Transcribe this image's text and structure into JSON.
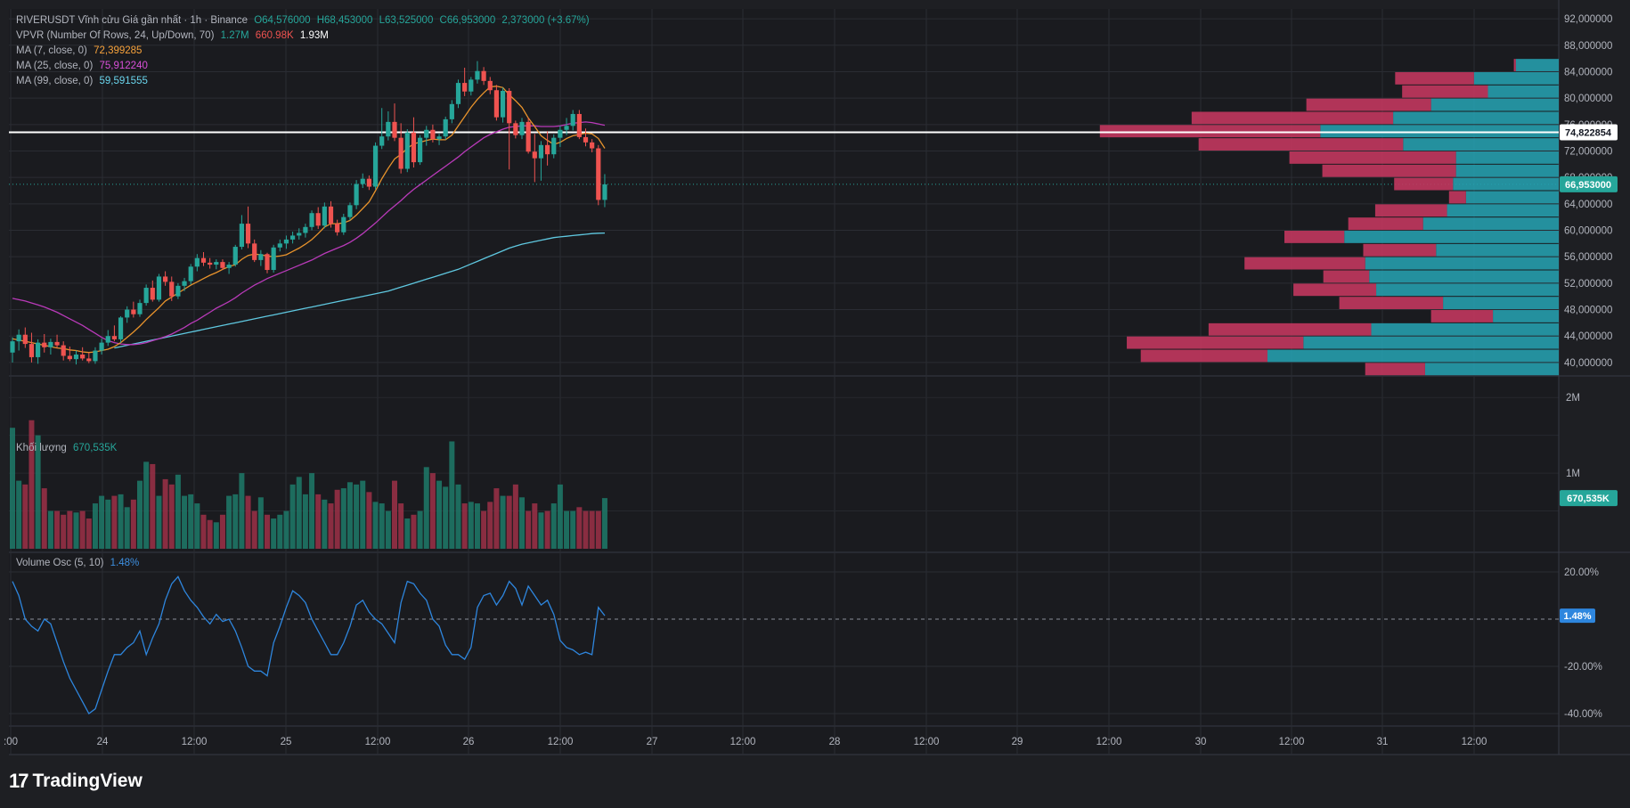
{
  "header": {
    "symbol": "RIVERUSDT Vĩnh cửu Giá gần nhất · 1h · Binance",
    "open": "O64,576000",
    "high": "H68,453000",
    "low": "L63,525000",
    "close": "C66,953000",
    "change": "2,373000 (+3.67%)"
  },
  "indicators": {
    "vpvr": {
      "label": "VPVR (Number Of Rows, 24, Up/Down, 70)",
      "up": "1.27M",
      "down": "660.98K",
      "total": "1.93M"
    },
    "ma7": {
      "label": "MA (7, close, 0)",
      "value": "72,399285",
      "color": "#f7a23b"
    },
    "ma25": {
      "label": "MA (25, close, 0)",
      "value": "75,912240",
      "color": "#c23bc2"
    },
    "ma99": {
      "label": "MA (99, close, 0)",
      "value": "59,591555",
      "color": "#5fc8e0"
    }
  },
  "volume_pane": {
    "label": "Khối lượng",
    "value": "670,535K",
    "axis_ticks": [
      "2M",
      "1M"
    ]
  },
  "osc_pane": {
    "label": "Volume Osc (5, 10)",
    "value": "1.48%",
    "axis_ticks": [
      "20.00%",
      "-20.00%",
      "-40.00%"
    ]
  },
  "price_axis": {
    "ticks": [
      "92,000000",
      "88,000000",
      "84,000000",
      "80,000000",
      "76,000000",
      "72,000000",
      "68,000000",
      "64,000000",
      "60,000000",
      "56,000000",
      "52,000000",
      "48,000000",
      "44,000000",
      "40,000000"
    ],
    "line_label": "74,822854",
    "last_label": "66,953000"
  },
  "time_axis": {
    "ticks": [
      ":00",
      "24",
      "12:00",
      "25",
      "12:00",
      "26",
      "12:00",
      "27",
      "12:00",
      "28",
      "12:00",
      "29",
      "12:00",
      "30",
      "12:00",
      "31",
      "12:00"
    ]
  },
  "brand": {
    "name": "TradingView",
    "logo": "17"
  },
  "colors": {
    "up": "#26a69a",
    "down": "#ef5350",
    "vp_up": "#26a0b0",
    "vp_down": "#c2375e",
    "background": "#1e1f23",
    "osc_line": "#2e86de"
  },
  "chart_data": {
    "type": "candlestick",
    "title": "RIVERUSDT Vĩnh cửu Giá gần nhất · 1h · Binance",
    "y_range": [
      38.5,
      93.5
    ],
    "horizontal_line": 74.822854,
    "last_price": 66.953,
    "candles": [
      [
        41.5,
        43.8,
        40.0,
        43.2
      ],
      [
        43.2,
        45.0,
        41.8,
        44.2
      ],
      [
        44.2,
        45.3,
        42.2,
        42.8
      ],
      [
        42.8,
        44.5,
        40.0,
        40.8
      ],
      [
        40.8,
        43.5,
        39.8,
        43.0
      ],
      [
        43.0,
        44.3,
        41.5,
        42.3
      ],
      [
        42.3,
        43.6,
        41.2,
        43.1
      ],
      [
        43.1,
        44.2,
        42.2,
        42.6
      ],
      [
        42.6,
        43.2,
        40.3,
        41.0
      ],
      [
        41.0,
        42.4,
        40.2,
        40.5
      ],
      [
        40.5,
        41.8,
        39.7,
        41.2
      ],
      [
        41.2,
        42.3,
        40.3,
        40.6
      ],
      [
        40.6,
        41.5,
        39.9,
        40.2
      ],
      [
        40.2,
        42.3,
        39.8,
        41.8
      ],
      [
        41.8,
        43.6,
        41.2,
        43.0
      ],
      [
        43.0,
        44.9,
        42.5,
        44.0
      ],
      [
        44.0,
        45.6,
        43.2,
        43.5
      ],
      [
        43.5,
        47.0,
        43.0,
        46.8
      ],
      [
        46.8,
        48.5,
        46.0,
        48.0
      ],
      [
        48.0,
        49.2,
        46.8,
        47.3
      ],
      [
        47.3,
        49.5,
        46.9,
        49.0
      ],
      [
        49.0,
        51.8,
        48.6,
        51.3
      ],
      [
        51.3,
        52.4,
        49.2,
        49.5
      ],
      [
        49.5,
        53.4,
        49.2,
        53.0
      ],
      [
        53.0,
        53.8,
        51.6,
        52.2
      ],
      [
        52.2,
        53.0,
        49.3,
        50.0
      ],
      [
        50.0,
        52.0,
        49.6,
        51.6
      ],
      [
        51.6,
        52.8,
        50.8,
        52.3
      ],
      [
        52.3,
        54.9,
        51.8,
        54.5
      ],
      [
        54.5,
        56.4,
        53.8,
        55.8
      ],
      [
        55.8,
        56.7,
        54.6,
        55.1
      ],
      [
        55.1,
        55.8,
        54.2,
        54.8
      ],
      [
        54.8,
        55.6,
        54.1,
        55.2
      ],
      [
        55.2,
        55.6,
        54.0,
        54.3
      ],
      [
        54.3,
        55.2,
        53.4,
        54.8
      ],
      [
        54.8,
        57.8,
        54.5,
        57.5
      ],
      [
        57.5,
        62.3,
        57.1,
        61.0
      ],
      [
        61.0,
        63.6,
        57.3,
        58.0
      ],
      [
        58.0,
        58.6,
        55.2,
        55.5
      ],
      [
        55.5,
        57.0,
        54.6,
        56.4
      ],
      [
        56.4,
        56.6,
        53.5,
        54.0
      ],
      [
        54.0,
        57.8,
        53.6,
        57.4
      ],
      [
        57.4,
        58.6,
        56.8,
        58.0
      ],
      [
        58.0,
        59.2,
        57.2,
        58.6
      ],
      [
        58.6,
        59.8,
        58.0,
        59.2
      ],
      [
        59.2,
        60.3,
        58.6,
        59.6
      ],
      [
        59.6,
        61.0,
        58.9,
        60.5
      ],
      [
        60.5,
        63.0,
        60.0,
        62.6
      ],
      [
        62.6,
        63.5,
        60.2,
        60.7
      ],
      [
        60.7,
        64.2,
        60.3,
        63.6
      ],
      [
        63.6,
        64.4,
        60.4,
        61.0
      ],
      [
        61.0,
        61.6,
        59.2,
        59.7
      ],
      [
        59.7,
        62.5,
        59.3,
        62.0
      ],
      [
        62.0,
        64.2,
        61.5,
        63.8
      ],
      [
        63.8,
        67.6,
        63.2,
        67.0
      ],
      [
        67.0,
        68.6,
        66.4,
        67.8
      ],
      [
        67.8,
        68.3,
        66.1,
        66.6
      ],
      [
        66.6,
        73.3,
        66.2,
        72.8
      ],
      [
        72.8,
        78.5,
        72.3,
        74.2
      ],
      [
        74.2,
        78.0,
        73.6,
        76.4
      ],
      [
        76.4,
        79.2,
        73.5,
        74.0
      ],
      [
        74.0,
        76.2,
        68.6,
        69.3
      ],
      [
        69.3,
        75.3,
        68.8,
        74.8
      ],
      [
        74.8,
        77.1,
        69.5,
        70.3
      ],
      [
        70.3,
        74.4,
        69.9,
        74.0
      ],
      [
        74.0,
        75.8,
        72.8,
        75.2
      ],
      [
        75.2,
        76.0,
        73.3,
        73.8
      ],
      [
        73.8,
        74.6,
        72.9,
        74.2
      ],
      [
        74.2,
        77.2,
        73.7,
        76.8
      ],
      [
        76.8,
        79.7,
        76.2,
        79.1
      ],
      [
        79.1,
        82.8,
        78.5,
        82.3
      ],
      [
        82.3,
        84.6,
        80.3,
        81.0
      ],
      [
        81.0,
        83.2,
        80.4,
        82.8
      ],
      [
        82.8,
        85.6,
        82.2,
        84.1
      ],
      [
        84.1,
        84.7,
        82.0,
        82.6
      ],
      [
        82.6,
        83.2,
        80.6,
        81.2
      ],
      [
        81.2,
        82.0,
        76.6,
        77.1
      ],
      [
        77.1,
        81.6,
        76.3,
        81.1
      ],
      [
        81.1,
        81.5,
        69.2,
        76.2
      ],
      [
        76.2,
        76.6,
        73.9,
        74.4
      ],
      [
        74.4,
        77.0,
        73.8,
        76.4
      ],
      [
        76.4,
        77.0,
        71.6,
        71.9
      ],
      [
        71.9,
        74.6,
        67.3,
        70.9
      ],
      [
        70.9,
        73.5,
        67.5,
        72.9
      ],
      [
        72.9,
        75.0,
        69.8,
        71.5
      ],
      [
        71.5,
        74.5,
        70.9,
        74.0
      ],
      [
        74.0,
        75.8,
        72.6,
        75.2
      ],
      [
        75.2,
        77.0,
        74.4,
        75.8
      ],
      [
        75.8,
        78.2,
        75.1,
        77.6
      ],
      [
        77.6,
        78.2,
        73.8,
        74.1
      ],
      [
        74.1,
        75.4,
        72.7,
        73.3
      ],
      [
        73.3,
        73.8,
        71.8,
        72.4
      ],
      [
        72.4,
        72.9,
        63.8,
        64.6
      ],
      [
        64.6,
        68.5,
        63.5,
        66.95
      ]
    ],
    "ma7": [
      43.6,
      43.4,
      43.2,
      43.0,
      42.8,
      42.6,
      42.4,
      42.2,
      42.1,
      41.9,
      41.8,
      41.6,
      41.5,
      41.6,
      41.8,
      42.0,
      42.4,
      43.0,
      43.8,
      44.6,
      45.5,
      46.5,
      47.4,
      48.3,
      49.3,
      49.9,
      50.5,
      51.1,
      51.7,
      52.2,
      52.7,
      53.2,
      53.6,
      54.1,
      54.5,
      54.8,
      55.6,
      56.2,
      56.4,
      56.3,
      56.1,
      56.0,
      56.1,
      56.3,
      56.8,
      57.3,
      57.9,
      58.6,
      59.5,
      60.5,
      61.0,
      61.0,
      61.1,
      61.5,
      62.3,
      63.3,
      64.3,
      66.0,
      67.8,
      69.4,
      70.8,
      71.5,
      72.4,
      73.1,
      73.3,
      73.6,
      73.8,
      73.7,
      73.7,
      74.4,
      75.8,
      77.2,
      78.6,
      79.8,
      80.8,
      81.7,
      81.8,
      81.6,
      80.5,
      79.6,
      78.6,
      77.0,
      75.7,
      74.3,
      73.6,
      73.0,
      73.3,
      73.9,
      74.3,
      74.5,
      74.7,
      74.6,
      73.9,
      72.4
    ],
    "ma25": [
      49.7,
      49.5,
      49.3,
      49.0,
      48.7,
      48.4,
      48.0,
      47.6,
      47.1,
      46.6,
      46.1,
      45.6,
      45.0,
      44.4,
      43.8,
      43.3,
      43.0,
      42.8,
      42.7,
      42.7,
      42.8,
      43.0,
      43.3,
      43.6,
      43.9,
      44.3,
      44.8,
      45.3,
      45.9,
      46.4,
      47.0,
      47.6,
      48.2,
      48.7,
      49.2,
      49.8,
      50.5,
      51.1,
      51.7,
      52.2,
      52.7,
      53.1,
      53.5,
      53.9,
      54.3,
      54.7,
      55.1,
      55.5,
      56.0,
      56.5,
      56.9,
      57.3,
      57.7,
      58.2,
      58.8,
      59.5,
      60.3,
      61.1,
      62.0,
      62.9,
      63.7,
      64.5,
      65.4,
      66.2,
      66.9,
      67.6,
      68.3,
      69.0,
      69.7,
      70.4,
      71.1,
      71.9,
      72.6,
      73.3,
      74.0,
      74.5,
      74.9,
      75.3,
      75.6,
      75.7,
      75.8,
      75.8,
      75.8,
      75.7,
      75.7,
      75.7,
      75.8,
      76.0,
      76.2,
      76.3,
      76.4,
      76.3,
      76.1,
      75.9
    ],
    "ma99": [
      null,
      null,
      null,
      null,
      null,
      null,
      null,
      null,
      null,
      null,
      null,
      null,
      null,
      null,
      null,
      null,
      42.2,
      42.4,
      42.6,
      42.8,
      43.0,
      43.2,
      43.4,
      43.6,
      43.8,
      44.0,
      44.2,
      44.4,
      44.6,
      44.8,
      45.0,
      45.2,
      45.4,
      45.6,
      45.8,
      46.0,
      46.2,
      46.4,
      46.6,
      46.8,
      47.0,
      47.2,
      47.4,
      47.6,
      47.8,
      48.0,
      48.2,
      48.4,
      48.6,
      48.8,
      49.0,
      49.2,
      49.4,
      49.6,
      49.8,
      50.0,
      50.2,
      50.4,
      50.6,
      50.8,
      51.1,
      51.4,
      51.7,
      52.0,
      52.3,
      52.6,
      52.9,
      53.2,
      53.5,
      53.8,
      54.1,
      54.5,
      54.9,
      55.3,
      55.7,
      56.1,
      56.5,
      56.9,
      57.3,
      57.6,
      57.9,
      58.1,
      58.3,
      58.5,
      58.7,
      58.9,
      59.0,
      59.1,
      59.2,
      59.3,
      59.4,
      59.5,
      59.55,
      59.59
    ],
    "volume": [
      1.6,
      0.9,
      0.85,
      1.7,
      1.5,
      0.8,
      0.5,
      0.5,
      0.45,
      0.5,
      0.48,
      0.5,
      0.4,
      0.6,
      0.7,
      0.65,
      0.7,
      0.72,
      0.55,
      0.65,
      0.9,
      1.15,
      1.12,
      0.7,
      0.92,
      0.85,
      0.98,
      0.7,
      0.72,
      0.6,
      0.45,
      0.38,
      0.35,
      0.45,
      0.7,
      0.72,
      1.0,
      0.7,
      0.5,
      0.68,
      0.45,
      0.4,
      0.45,
      0.5,
      0.85,
      0.95,
      0.72,
      1.0,
      0.72,
      0.65,
      0.6,
      0.78,
      0.8,
      0.88,
      0.85,
      0.9,
      0.75,
      0.62,
      0.6,
      0.5,
      0.9,
      0.6,
      0.4,
      0.45,
      0.5,
      1.08,
      1.0,
      0.9,
      0.82,
      1.42,
      0.85,
      0.6,
      0.62,
      0.6,
      0.5,
      0.62,
      0.8,
      0.7,
      0.7,
      0.85,
      0.68,
      0.5,
      0.6,
      0.48,
      0.5,
      0.6,
      0.85,
      0.5,
      0.5,
      0.55,
      0.5,
      0.5,
      0.5,
      0.67
    ],
    "osc": [
      16,
      10,
      0,
      -3,
      -5,
      0,
      -2,
      -10,
      -18,
      -25,
      -30,
      -35,
      -40,
      -38,
      -30,
      -22,
      -15,
      -15,
      -12,
      -10,
      -5,
      -15,
      -8,
      -2,
      8,
      15,
      18,
      12,
      8,
      5,
      1,
      -2,
      2,
      -1,
      0,
      -5,
      -12,
      -20,
      -22,
      -22,
      -24,
      -10,
      -3,
      5,
      12,
      10,
      7,
      0,
      -5,
      -10,
      -15,
      -15,
      -10,
      -3,
      6,
      8,
      3,
      0,
      -2,
      -6,
      -10,
      7,
      16,
      15,
      11,
      8,
      0,
      -3,
      -11,
      -15,
      -15,
      -17,
      -12,
      5,
      10,
      11,
      6,
      10,
      16,
      13,
      6,
      14,
      10,
      6,
      8,
      2,
      -9,
      -12,
      -13,
      -15,
      -14,
      -15,
      5,
      1.48
    ],
    "volume_profile": [
      {
        "price": 84.0,
        "up": 0.43,
        "down": 0.02
      },
      {
        "price": 82.0,
        "up": 0.85,
        "down": 0.79
      },
      {
        "price": 80.0,
        "up": 0.71,
        "down": 0.86
      },
      {
        "price": 78.0,
        "up": 1.28,
        "down": 1.25
      },
      {
        "price": 76.0,
        "up": 1.66,
        "down": 2.02
      },
      {
        "price": 74.0,
        "up": 2.39,
        "down": 2.21
      },
      {
        "price": 72.0,
        "up": 1.56,
        "down": 2.05
      },
      {
        "price": 70.0,
        "up": 1.03,
        "down": 1.67
      },
      {
        "price": 68.0,
        "up": 1.03,
        "down": 1.34
      },
      {
        "price": 66.0,
        "up": 1.06,
        "down": 0.59
      },
      {
        "price": 64.0,
        "up": 0.93,
        "down": 0.17
      },
      {
        "price": 62.0,
        "up": 1.12,
        "down": 0.72
      },
      {
        "price": 60.0,
        "up": 1.36,
        "down": 0.75
      },
      {
        "price": 58.0,
        "up": 2.15,
        "down": 0.6
      },
      {
        "price": 56.0,
        "up": 1.23,
        "down": 0.73
      },
      {
        "price": 54.0,
        "up": 1.94,
        "down": 1.21
      },
      {
        "price": 52.0,
        "up": 1.9,
        "down": 0.46
      },
      {
        "price": 50.0,
        "up": 1.83,
        "down": 0.83
      },
      {
        "price": 48.0,
        "up": 1.16,
        "down": 1.04
      },
      {
        "price": 46.0,
        "up": 0.66,
        "down": 0.62
      },
      {
        "price": 44.0,
        "up": 1.88,
        "down": 1.63
      },
      {
        "price": 42.0,
        "up": 2.56,
        "down": 1.77
      },
      {
        "price": 40.0,
        "up": 2.92,
        "down": 1.27
      },
      {
        "price": 38.0,
        "up": 1.34,
        "down": 0.6
      }
    ]
  }
}
